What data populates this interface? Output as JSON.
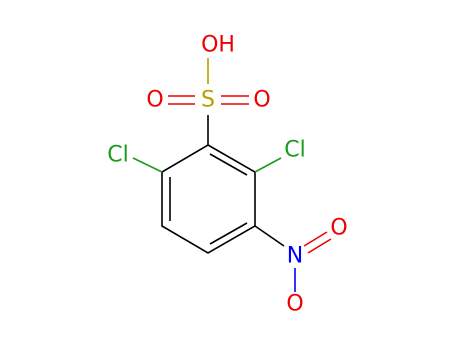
{
  "atoms": [
    {
      "label": "OH"
    },
    {
      "label": "S"
    },
    {
      "label": "O"
    },
    {
      "label": "O"
    },
    {
      "label": "Cl"
    },
    {
      "label": "Cl"
    },
    {
      "label": "N"
    },
    {
      "label": "O"
    },
    {
      "label": "O"
    }
  ]
}
